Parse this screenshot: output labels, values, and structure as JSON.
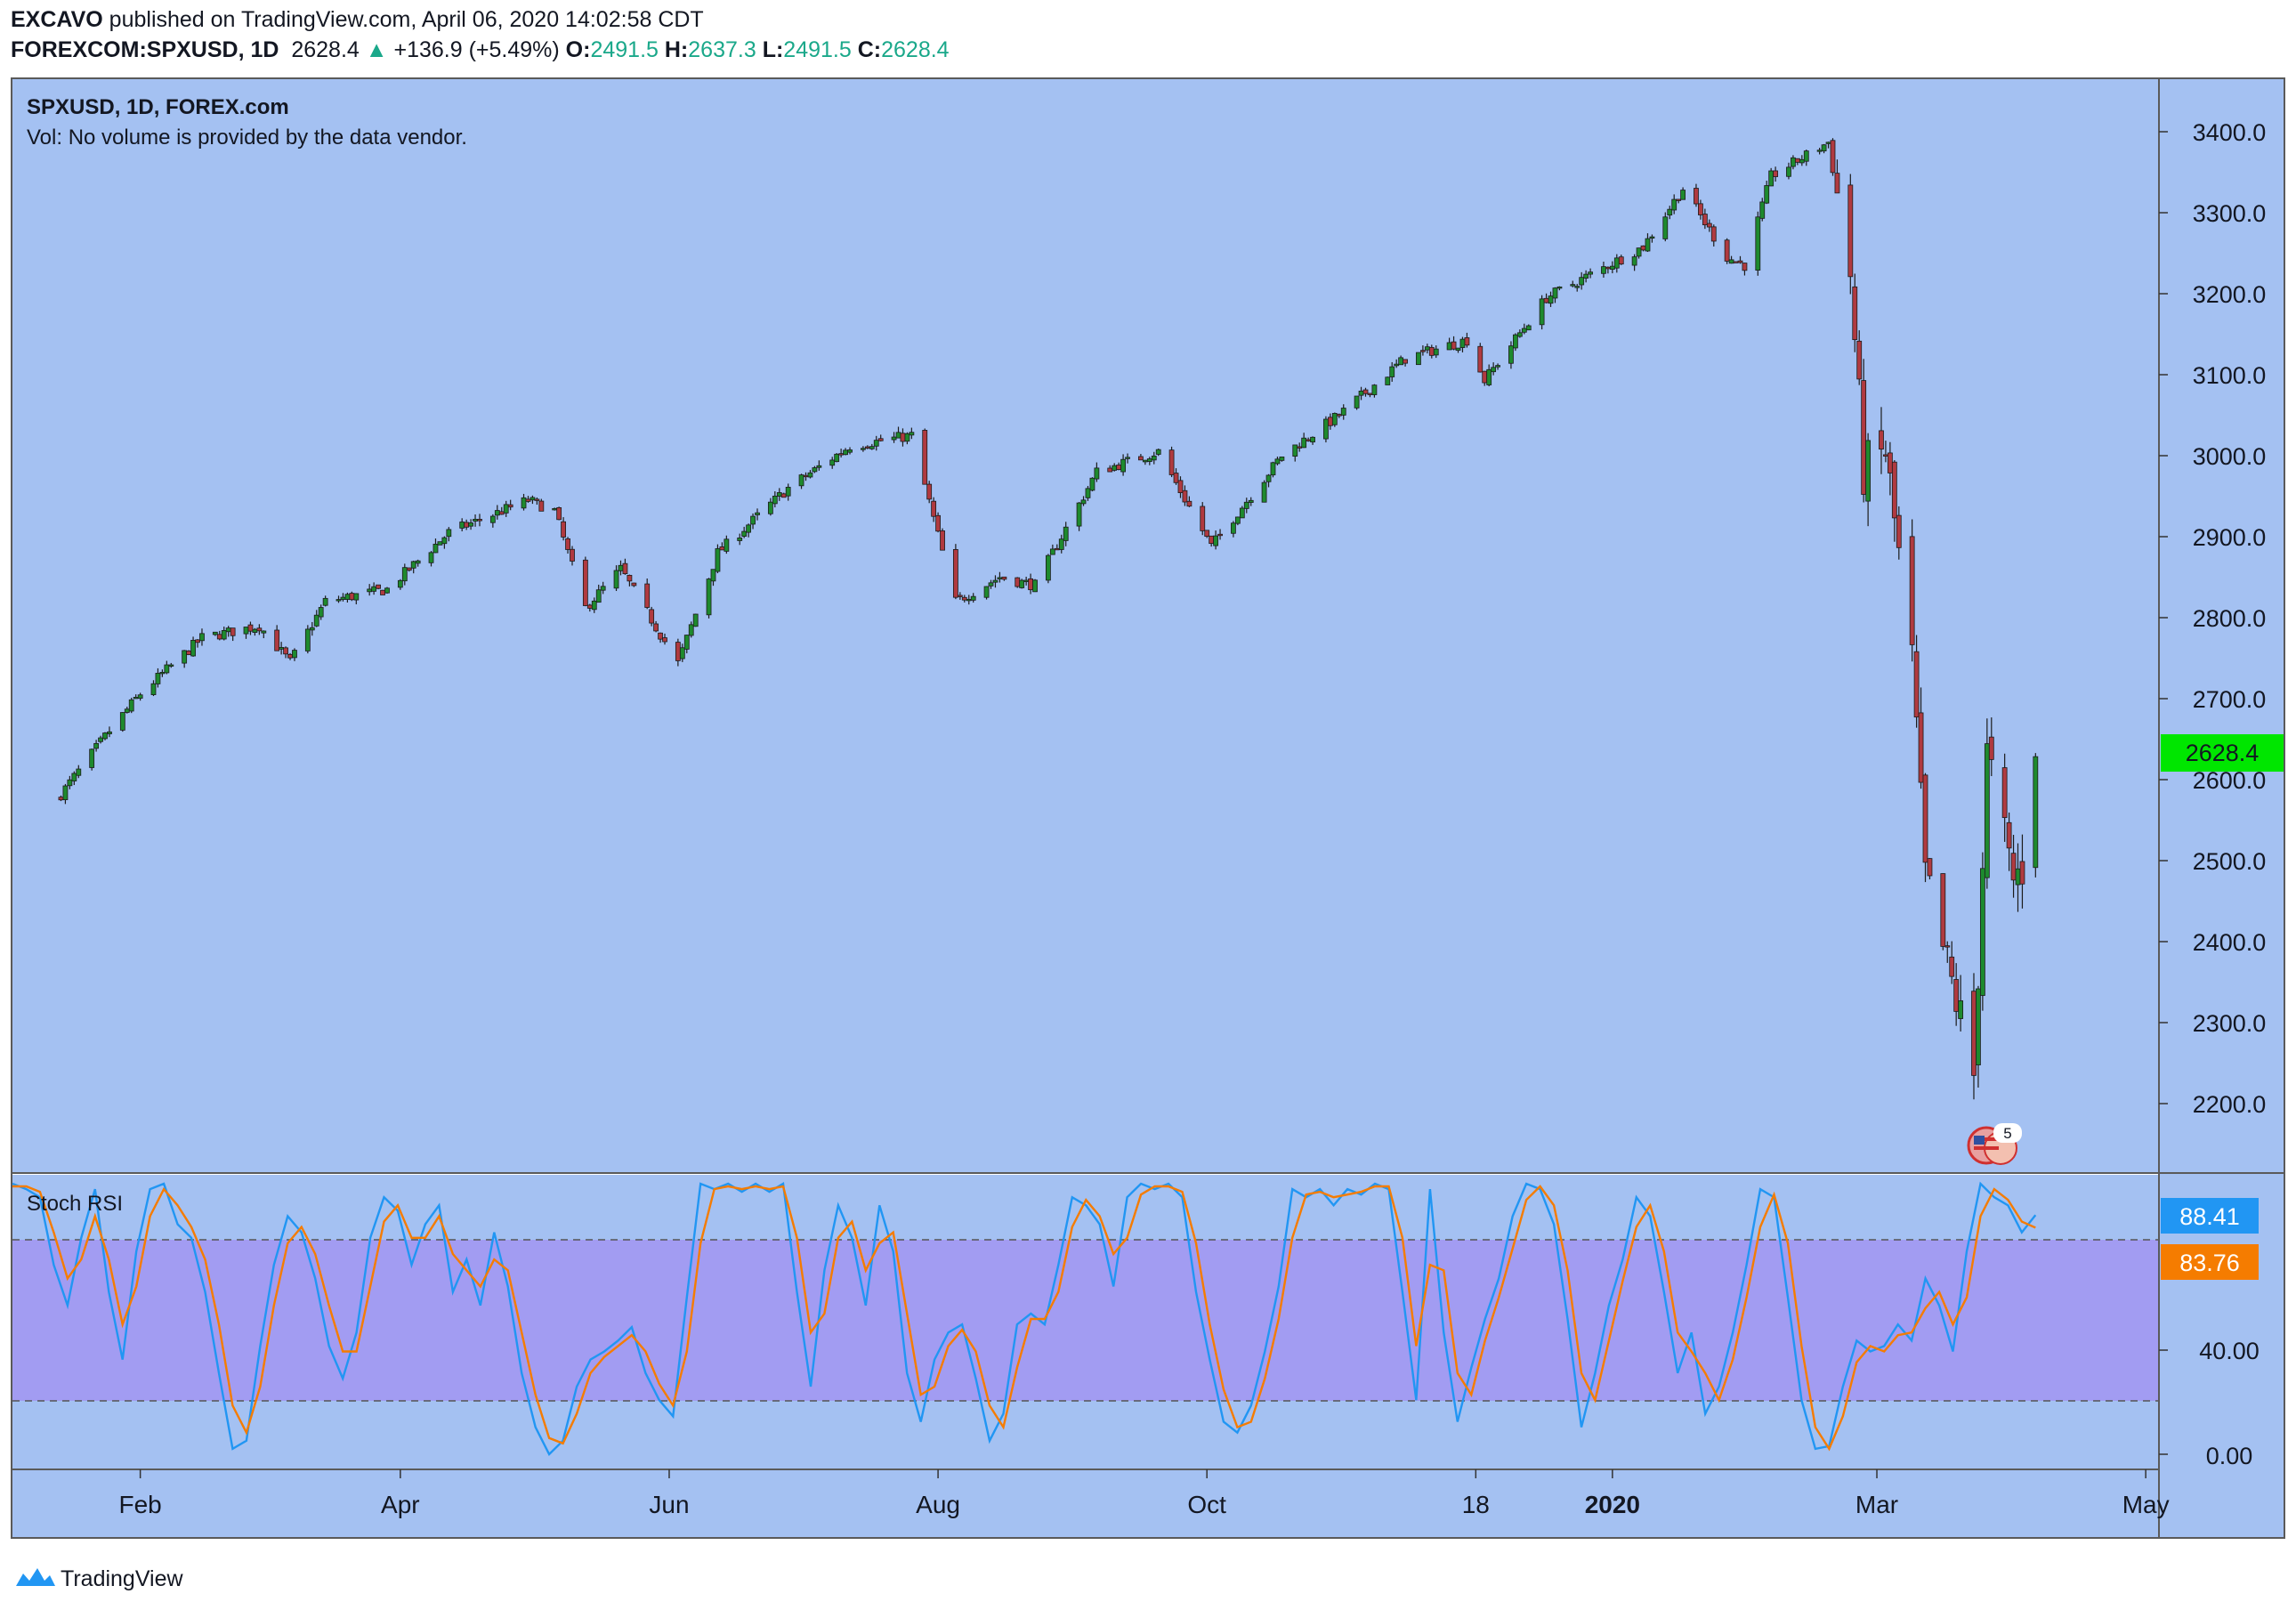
{
  "header": {
    "publisher_line": "EXCAVO published on TradingView.com, April 06, 2020 14:02:58 CDT",
    "publisher": "EXCAVO",
    "published_text": " published on TradingView.com, April 06, 2020 14:02:58 CDT",
    "symbol": "FOREXCOM:SPXUSD, 1D",
    "last": "2628.4",
    "change_arrow": "▲",
    "change": "+136.9 (+5.49%)",
    "open_label": "O:",
    "open": "2491.5",
    "high_label": "H:",
    "high": "2637.3",
    "low_label": "L:",
    "low": "2491.5",
    "close_label": "C:",
    "close": "2628.4"
  },
  "pane_main": {
    "title": "SPXUSD, 1D, FOREX.com",
    "vol_note": "Vol: No volume is provided by the data vendor.",
    "event_badge_count": "5"
  },
  "pane_osc": {
    "title": "Stoch RSI",
    "k_value": "88.41",
    "d_value": "83.76",
    "axis_ticks": [
      "40.00",
      "0.00"
    ]
  },
  "footer": {
    "brand": "TradingView"
  },
  "colors": {
    "background": "#a4c1f2",
    "band_fill": "#a29cf2",
    "up": "#1e8a2e",
    "down": "#b03a40",
    "k_line": "#2196f3",
    "d_line": "#f57c00",
    "price_tag": "#00e600"
  },
  "chart_data": [
    {
      "type": "candlestick",
      "title": "SPXUSD, 1D, FOREX.com",
      "x_tick_labels": [
        "Feb",
        "Apr",
        "Jun",
        "Aug",
        "Oct",
        "18",
        "2020",
        "Mar",
        "May"
      ],
      "y_tick_labels": [
        "3400.0",
        "3300.0",
        "3200.0",
        "3100.0",
        "3000.0",
        "2900.0",
        "2800.0",
        "2700.0",
        "2600.0",
        "2500.0",
        "2400.0",
        "2300.0",
        "2200.0"
      ],
      "ylim": [
        2150,
        3450
      ],
      "last_price_label": "2628.4",
      "close_anchors": [
        [
          "2019-01-14",
          2582
        ],
        [
          "2019-01-25",
          2660
        ],
        [
          "2019-02-01",
          2706
        ],
        [
          "2019-02-15",
          2775
        ],
        [
          "2019-02-28",
          2790
        ],
        [
          "2019-03-07",
          2745
        ],
        [
          "2019-03-15",
          2820
        ],
        [
          "2019-03-29",
          2835
        ],
        [
          "2019-04-12",
          2905
        ],
        [
          "2019-04-30",
          2945
        ],
        [
          "2019-05-06",
          2932
        ],
        [
          "2019-05-13",
          2812
        ],
        [
          "2019-05-21",
          2860
        ],
        [
          "2019-06-03",
          2744
        ],
        [
          "2019-06-12",
          2880
        ],
        [
          "2019-06-28",
          2960
        ],
        [
          "2019-07-12",
          3012
        ],
        [
          "2019-07-26",
          3025
        ],
        [
          "2019-08-05",
          2820
        ],
        [
          "2019-08-15",
          2850
        ],
        [
          "2019-08-23",
          2840
        ],
        [
          "2019-09-06",
          2980
        ],
        [
          "2019-09-20",
          3005
        ],
        [
          "2019-10-02",
          2888
        ],
        [
          "2019-10-18",
          3000
        ],
        [
          "2019-10-31",
          3050
        ],
        [
          "2019-11-15",
          3120
        ],
        [
          "2019-11-29",
          3143
        ],
        [
          "2019-12-03",
          3093
        ],
        [
          "2019-12-17",
          3195
        ],
        [
          "2019-12-31",
          3235
        ],
        [
          "2020-01-08",
          3258
        ],
        [
          "2020-01-17",
          3330
        ],
        [
          "2020-01-27",
          3245
        ],
        [
          "2020-01-31",
          3235
        ],
        [
          "2020-02-06",
          3345
        ],
        [
          "2020-02-19",
          3387
        ],
        [
          "2020-02-24",
          3225
        ],
        [
          "2020-02-27",
          2980
        ],
        [
          "2020-03-03",
          3005
        ],
        [
          "2020-03-09",
          2745
        ],
        [
          "2020-03-12",
          2480
        ],
        [
          "2020-03-16",
          2390
        ],
        [
          "2020-03-20",
          2305
        ],
        [
          "2020-03-23",
          2235
        ],
        [
          "2020-03-26",
          2630
        ],
        [
          "2020-04-01",
          2475
        ],
        [
          "2020-04-03",
          2491.5
        ],
        [
          "2020-04-06",
          2628.4
        ]
      ]
    },
    {
      "type": "line",
      "title": "Stoch RSI",
      "ylim": [
        0,
        100
      ],
      "band": [
        20,
        80
      ],
      "y_tick_labels": [
        "40.00",
        "0.00"
      ],
      "series": [
        {
          "color": "#2196f3",
          "last_value": 88.41,
          "values": [
            100,
            98,
            95,
            70,
            55,
            80,
            98,
            60,
            35,
            75,
            98,
            100,
            85,
            80,
            60,
            30,
            2,
            5,
            40,
            70,
            88,
            82,
            65,
            40,
            28,
            45,
            80,
            95,
            90,
            70,
            85,
            92,
            60,
            72,
            55,
            82,
            62,
            30,
            10,
            0,
            5,
            25,
            35,
            38,
            42,
            47,
            30,
            20,
            14,
            58,
            100,
            98,
            100,
            97,
            100,
            97,
            100,
            60,
            25,
            68,
            92,
            80,
            55,
            92,
            75,
            30,
            12,
            35,
            45,
            48,
            28,
            5,
            15,
            48,
            52,
            48,
            70,
            95,
            92,
            85,
            62,
            95,
            100,
            98,
            100,
            95,
            60,
            35,
            12,
            8,
            18,
            38,
            62,
            98,
            95,
            98,
            92,
            98,
            96,
            100,
            98,
            60,
            20,
            98,
            45,
            12,
            32,
            50,
            65,
            88,
            100,
            98,
            85,
            50,
            10,
            30,
            55,
            72,
            95,
            88,
            60,
            30,
            45,
            15,
            25,
            45,
            70,
            98,
            95,
            58,
            20,
            2,
            3,
            25,
            42,
            38,
            40,
            48,
            42,
            65,
            55,
            38,
            75,
            100,
            95,
            92,
            82,
            88.41
          ]
        },
        {
          "color": "#f57c00",
          "last_value": 83.76,
          "values": [
            99,
            99,
            97,
            82,
            65,
            72,
            88,
            72,
            48,
            62,
            88,
            98,
            92,
            84,
            72,
            48,
            18,
            8,
            25,
            55,
            78,
            84,
            74,
            55,
            38,
            38,
            62,
            86,
            92,
            80,
            80,
            88,
            74,
            68,
            62,
            72,
            68,
            45,
            22,
            6,
            4,
            15,
            30,
            36,
            40,
            44,
            38,
            26,
            18,
            38,
            78,
            98,
            99,
            98,
            99,
            98,
            99,
            80,
            45,
            52,
            80,
            86,
            68,
            78,
            82,
            52,
            22,
            25,
            40,
            46,
            38,
            18,
            10,
            32,
            50,
            50,
            60,
            84,
            94,
            88,
            74,
            80,
            96,
            99,
            99,
            97,
            78,
            48,
            24,
            10,
            12,
            28,
            50,
            80,
            96,
            97,
            95,
            96,
            97,
            99,
            99,
            80,
            40,
            70,
            68,
            30,
            22,
            42,
            58,
            76,
            94,
            99,
            92,
            68,
            30,
            20,
            42,
            64,
            84,
            92,
            75,
            45,
            38,
            30,
            20,
            35,
            58,
            84,
            96,
            78,
            40,
            10,
            2,
            14,
            34,
            40,
            38,
            44,
            45,
            54,
            60,
            48,
            58,
            88,
            98,
            94,
            86,
            83.76
          ]
        }
      ]
    }
  ]
}
